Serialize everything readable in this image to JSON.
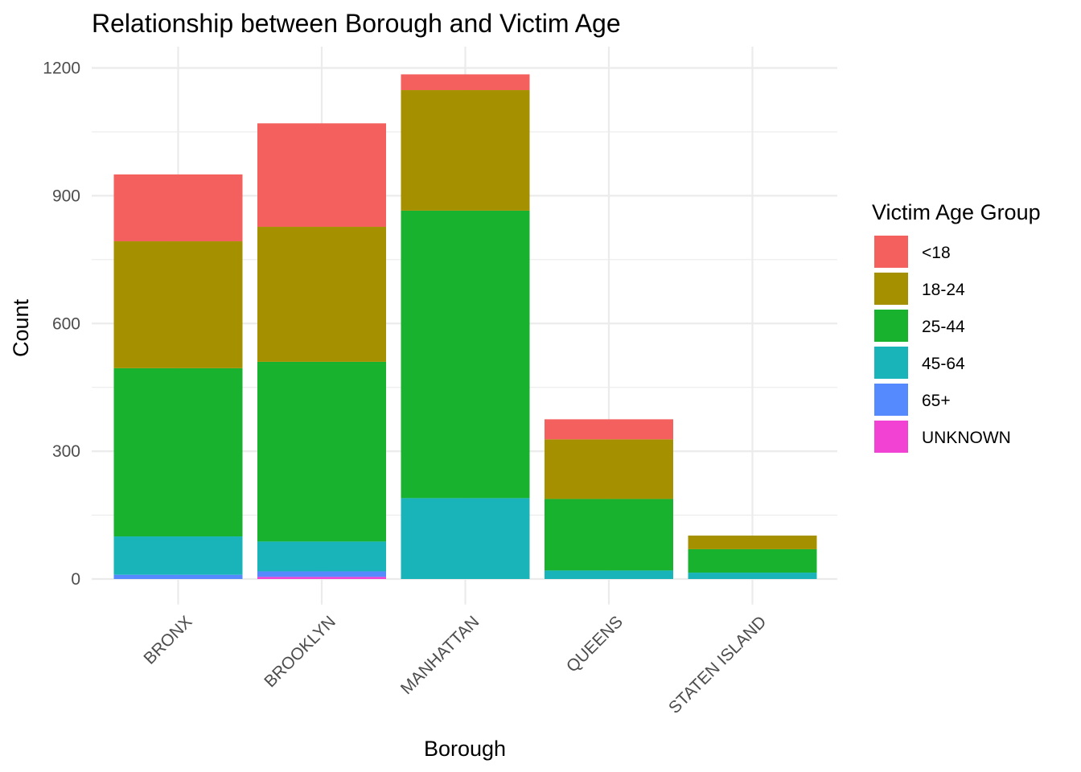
{
  "chart_data": {
    "type": "bar",
    "stacked": true,
    "title": "Relationship between Borough and Victim Age",
    "xlabel": "Borough",
    "ylabel": "Count",
    "ylim": [
      0,
      1250
    ],
    "y_ticks": [
      0,
      300,
      600,
      900,
      1200
    ],
    "y_tick_labels": [
      "0",
      "300",
      "600",
      "900",
      "1200"
    ],
    "grid": true,
    "categories": [
      "BRONX",
      "BROOKLYN",
      "MANHATTAN",
      "QUEENS",
      "STATEN ISLAND"
    ],
    "legend": {
      "title": "Victim Age Group",
      "position": "right"
    },
    "series": [
      {
        "name": "UNKNOWN",
        "color": "#F142D4",
        "values": [
          0,
          5,
          0,
          0,
          0
        ]
      },
      {
        "name": "65+",
        "color": "#558AFF",
        "values": [
          10,
          13,
          0,
          0,
          0
        ]
      },
      {
        "name": "45-64",
        "color": "#18B4B9",
        "values": [
          90,
          70,
          190,
          20,
          15
        ]
      },
      {
        "name": "25-44",
        "color": "#18B22F",
        "values": [
          395,
          422,
          675,
          168,
          55
        ]
      },
      {
        "name": "18-24",
        "color": "#A59000",
        "values": [
          298,
          317,
          283,
          140,
          32
        ]
      },
      {
        "name": "<18",
        "color": "#F3605E",
        "values": [
          157,
          243,
          37,
          47,
          0
        ]
      }
    ],
    "legend_order": [
      "<18",
      "18-24",
      "25-44",
      "45-64",
      "65+",
      "UNKNOWN"
    ]
  }
}
